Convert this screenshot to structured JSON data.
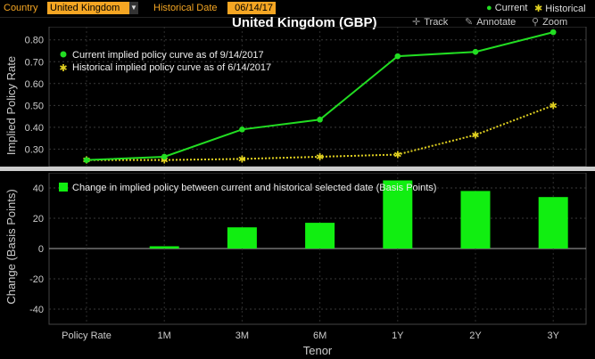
{
  "toolbar": {
    "country_label": "Country",
    "country_value": "United Kingdom",
    "hist_date_label": "Historical Date",
    "hist_date_value": "06/14/17",
    "legend_current": "Current",
    "legend_historical": "Historical"
  },
  "chart_title": "United Kingdom (GBP)",
  "tools": {
    "track": "Track",
    "annotate": "Annotate",
    "zoom": "Zoom"
  },
  "colors": {
    "current": "#22dd22",
    "historical": "#e0d020",
    "bar": "#11ee11",
    "accent": "#f5a623"
  },
  "chart_data": [
    {
      "type": "line",
      "ylabel": "Implied Policy Rate",
      "ylim": [
        0.22,
        0.86
      ],
      "yticks": [
        0.3,
        0.4,
        0.5,
        0.6,
        0.7,
        0.8
      ],
      "categories": [
        "Policy Rate",
        "1M",
        "3M",
        "6M",
        "1Y",
        "2Y",
        "3Y"
      ],
      "legend_position": "top-left",
      "grid": true,
      "series": [
        {
          "name": "Current implied policy curve as of 9/14/2017",
          "values": [
            0.25,
            0.265,
            0.39,
            0.435,
            0.725,
            0.745,
            0.835
          ]
        },
        {
          "name": "Historical implied policy curve as of 6/14/2017",
          "values": [
            0.25,
            0.25,
            0.255,
            0.265,
            0.275,
            0.365,
            0.5
          ]
        }
      ]
    },
    {
      "type": "bar",
      "ylabel": "Change (Basis Points)",
      "xlabel": "Tenor",
      "ylim": [
        -50,
        50
      ],
      "yticks": [
        -40,
        -20,
        0,
        20,
        40
      ],
      "categories": [
        "Policy Rate",
        "1M",
        "3M",
        "6M",
        "1Y",
        "2Y",
        "3Y"
      ],
      "legend_position": "top-left",
      "grid": true,
      "series": [
        {
          "name": "Change in implied policy between current and historical selected date (Basis Points)",
          "values": [
            0,
            1.5,
            14,
            17,
            45,
            38,
            34
          ]
        }
      ]
    }
  ]
}
